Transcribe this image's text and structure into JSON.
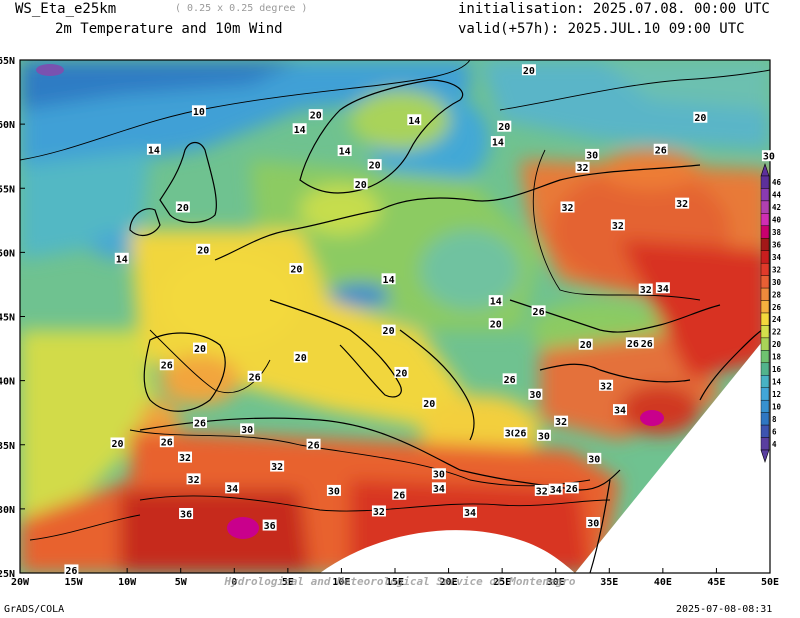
{
  "header": {
    "model": "WS_Eta_e25km",
    "resolution": "( 0.25 x 0.25 degree )",
    "product": "2m Temperature and 10m Wind",
    "init_label": "initialisation: 2025.07.08. 00:00 UTC",
    "valid_label": "valid(+57h): 2025.JUL.10 09:00 UTC"
  },
  "map": {
    "lat_labels": [
      "65N",
      "60N",
      "55N",
      "50N",
      "45N",
      "40N",
      "35N",
      "30N",
      "25N"
    ],
    "lon_labels": [
      "20W",
      "15W",
      "10W",
      "5W",
      "0",
      "5E",
      "10E",
      "15E",
      "20E",
      "25E",
      "30E",
      "35E",
      "40E",
      "45E",
      "50E"
    ],
    "watermark": "Hydrological and Meteorological Service of Montenegro",
    "contour_labels": [
      {
        "t": "20",
        "lon": 27.5,
        "lat": 64.2
      },
      {
        "t": "10",
        "lon": -3.3,
        "lat": 61.0
      },
      {
        "t": "20",
        "lon": 7.6,
        "lat": 60.7
      },
      {
        "t": "14",
        "lon": 16.8,
        "lat": 60.3
      },
      {
        "t": "20",
        "lon": 43.5,
        "lat": 60.5
      },
      {
        "t": "14",
        "lon": 6.1,
        "lat": 59.6
      },
      {
        "t": "20",
        "lon": 25.2,
        "lat": 59.8
      },
      {
        "t": "14",
        "lon": 24.6,
        "lat": 58.6
      },
      {
        "t": "14",
        "lon": -7.5,
        "lat": 58.0
      },
      {
        "t": "14",
        "lon": 10.3,
        "lat": 57.9
      },
      {
        "t": "26",
        "lon": 39.8,
        "lat": 58.0
      },
      {
        "t": "30",
        "lon": 33.4,
        "lat": 57.6
      },
      {
        "t": "30",
        "lon": 49.9,
        "lat": 57.5
      },
      {
        "t": "20",
        "lon": 13.1,
        "lat": 56.8
      },
      {
        "t": "32",
        "lon": 32.5,
        "lat": 56.6
      },
      {
        "t": "20",
        "lon": 11.8,
        "lat": 55.3
      },
      {
        "t": "20",
        "lon": -4.8,
        "lat": 53.5
      },
      {
        "t": "32",
        "lon": 31.1,
        "lat": 53.5
      },
      {
        "t": "32",
        "lon": 41.8,
        "lat": 53.8
      },
      {
        "t": "32",
        "lon": 35.8,
        "lat": 52.1
      },
      {
        "t": "20",
        "lon": -2.9,
        "lat": 50.2
      },
      {
        "t": "14",
        "lon": -10.5,
        "lat": 49.5
      },
      {
        "t": "20",
        "lon": 5.8,
        "lat": 48.7
      },
      {
        "t": "14",
        "lon": 14.4,
        "lat": 47.9
      },
      {
        "t": "32",
        "lon": 38.4,
        "lat": 47.1
      },
      {
        "t": "34",
        "lon": 40.0,
        "lat": 47.2
      },
      {
        "t": "14",
        "lon": 24.4,
        "lat": 46.2
      },
      {
        "t": "26",
        "lon": 28.4,
        "lat": 45.4
      },
      {
        "t": "20",
        "lon": 24.4,
        "lat": 44.4
      },
      {
        "t": "20",
        "lon": 14.4,
        "lat": 43.9
      },
      {
        "t": "20",
        "lon": 32.8,
        "lat": 42.8
      },
      {
        "t": "26",
        "lon": 37.2,
        "lat": 42.9
      },
      {
        "t": "26",
        "lon": 38.5,
        "lat": 42.9
      },
      {
        "t": "20",
        "lon": -3.2,
        "lat": 42.5
      },
      {
        "t": "20",
        "lon": 6.2,
        "lat": 41.8
      },
      {
        "t": "26",
        "lon": -6.3,
        "lat": 41.2
      },
      {
        "t": "26",
        "lon": 1.9,
        "lat": 40.3
      },
      {
        "t": "20",
        "lon": 15.6,
        "lat": 40.6
      },
      {
        "t": "26",
        "lon": 25.7,
        "lat": 40.1
      },
      {
        "t": "32",
        "lon": 34.7,
        "lat": 39.6
      },
      {
        "t": "30",
        "lon": 28.1,
        "lat": 38.9
      },
      {
        "t": "20",
        "lon": 18.2,
        "lat": 38.2
      },
      {
        "t": "26",
        "lon": -3.2,
        "lat": 36.7
      },
      {
        "t": "30",
        "lon": 1.2,
        "lat": 36.2
      },
      {
        "t": "32",
        "lon": 30.5,
        "lat": 36.8
      },
      {
        "t": "34",
        "lon": 36.0,
        "lat": 37.7
      },
      {
        "t": "30",
        "lon": 25.8,
        "lat": 35.9
      },
      {
        "t": "26",
        "lon": 26.7,
        "lat": 35.9
      },
      {
        "t": "30",
        "lon": 28.9,
        "lat": 35.7
      },
      {
        "t": "20",
        "lon": -10.9,
        "lat": 35.1
      },
      {
        "t": "26",
        "lon": -6.3,
        "lat": 35.2
      },
      {
        "t": "26",
        "lon": 7.4,
        "lat": 35.0
      },
      {
        "t": "32",
        "lon": -4.6,
        "lat": 34.0
      },
      {
        "t": "30",
        "lon": 33.6,
        "lat": 33.9
      },
      {
        "t": "32",
        "lon": 4.0,
        "lat": 33.3
      },
      {
        "t": "32",
        "lon": -3.8,
        "lat": 32.3
      },
      {
        "t": "34",
        "lon": -0.2,
        "lat": 31.6
      },
      {
        "t": "30",
        "lon": 19.1,
        "lat": 32.7
      },
      {
        "t": "34",
        "lon": 19.1,
        "lat": 31.6
      },
      {
        "t": "30",
        "lon": 9.3,
        "lat": 31.4
      },
      {
        "t": "26",
        "lon": 15.4,
        "lat": 31.1
      },
      {
        "t": "32",
        "lon": 28.7,
        "lat": 31.4
      },
      {
        "t": "34",
        "lon": 30.0,
        "lat": 31.5
      },
      {
        "t": "26",
        "lon": 31.5,
        "lat": 31.6
      },
      {
        "t": "32",
        "lon": 13.5,
        "lat": 29.8
      },
      {
        "t": "34",
        "lon": 22.0,
        "lat": 29.7
      },
      {
        "t": "36",
        "lon": -4.5,
        "lat": 29.6
      },
      {
        "t": "36",
        "lon": 3.3,
        "lat": 28.7
      },
      {
        "t": "30",
        "lon": 33.5,
        "lat": 28.9
      },
      {
        "t": "26",
        "lon": -15.2,
        "lat": 25.2
      }
    ]
  },
  "colorbar": {
    "ticks": [
      "46",
      "44",
      "42",
      "40",
      "38",
      "36",
      "34",
      "32",
      "30",
      "28",
      "26",
      "24",
      "22",
      "20",
      "18",
      "16",
      "14",
      "12",
      "10",
      "8",
      "6",
      "4"
    ],
    "colors": [
      "#5d2f9a",
      "#8a3ab0",
      "#b040b0",
      "#cf2eb4",
      "#c9006e",
      "#a21818",
      "#c81e1e",
      "#e03a2a",
      "#e85f34",
      "#f08a3c",
      "#f5b03f",
      "#f4d83c",
      "#d4e04c",
      "#a9d358",
      "#6fc270",
      "#52b38c",
      "#48b2c4",
      "#42a6d8",
      "#3791cf",
      "#2f77c2",
      "#3d54b0",
      "#5a3fa0"
    ]
  },
  "footer": {
    "left": "GrADS/COLA",
    "right": "2025-07-08-08:31"
  }
}
